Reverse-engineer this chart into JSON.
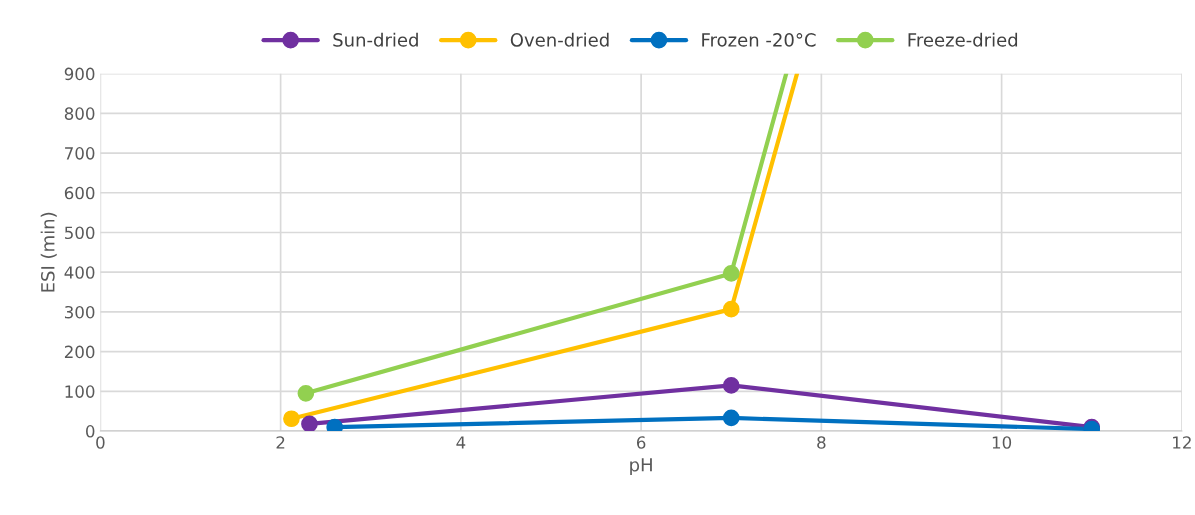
{
  "chart_data": {
    "type": "line",
    "xlabel": "pH",
    "ylabel": "ESI (min)",
    "xlim": [
      0,
      12
    ],
    "xticks": [
      0,
      2,
      4,
      6,
      8,
      10,
      12
    ],
    "ylim": [
      0,
      900
    ],
    "yticks": [
      0,
      100,
      200,
      300,
      400,
      500,
      600,
      700,
      800,
      900
    ],
    "grid": true,
    "legend": "top",
    "marker": "circle",
    "line_style": "solid",
    "series": [
      {
        "name": "Sun-dried",
        "color": "#7030a0",
        "x": [
          2.32,
          7,
          11
        ],
        "values": [
          18,
          115,
          10
        ]
      },
      {
        "name": "Oven-dried",
        "color": "#ffc000",
        "x": [
          2.12,
          7,
          7.73
        ],
        "values": [
          31,
          307,
          900
        ]
      },
      {
        "name": "Frozen -20°C",
        "color": "#0070c0",
        "x": [
          2.6,
          7,
          11
        ],
        "values": [
          10,
          33,
          5
        ]
      },
      {
        "name": "Freeze-dried",
        "color": "#92d050",
        "x": [
          2.28,
          7,
          7.61
        ],
        "values": [
          95,
          397,
          900
        ]
      }
    ]
  }
}
